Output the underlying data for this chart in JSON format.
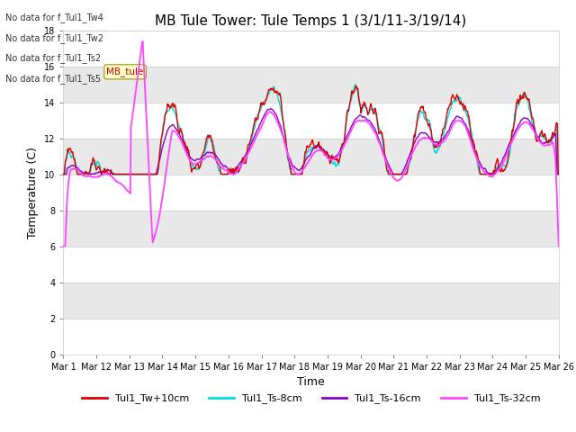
{
  "title": "MB Tule Tower: Tule Temps 1 (3/1/11-3/19/14)",
  "ylabel": "Temperature (C)",
  "xlabel": "Time",
  "ylim": [
    0,
    18
  ],
  "yticks": [
    0,
    2,
    4,
    6,
    8,
    10,
    12,
    14,
    16,
    18
  ],
  "xtick_labels": [
    "Mar 1",
    "Mar 12",
    "Mar 13",
    "Mar 14",
    "Mar 15",
    "Mar 16",
    "Mar 17",
    "Mar 18",
    "Mar 19",
    "Mar 20",
    "Mar 21",
    "Mar 22",
    "Mar 23",
    "Mar 24",
    "Mar 25",
    "Mar 26"
  ],
  "colors": {
    "Tw10cm": "#dd0000",
    "Ts8cm": "#00dddd",
    "Ts16cm": "#8800cc",
    "Ts32cm": "#ff44ff"
  },
  "legend_labels": [
    "Tul1_Tw+10cm",
    "Tul1_Ts-8cm",
    "Tul1_Ts-16cm",
    "Tul1_Ts-32cm"
  ],
  "no_data_texts": [
    "No data for f_Tul1_Tw4",
    "No data for f_Tul1_Tw2",
    "No data for f_Tul1_Ts2",
    "No data for f_Tul1_Ts5"
  ],
  "tooltip_text": "MB_tule",
  "bg_color": "#f0f0f0",
  "stripe_light": "#f8f8f8",
  "stripe_dark": "#e4e4e4",
  "title_fontsize": 11,
  "tick_fontsize": 7,
  "label_fontsize": 9,
  "legend_fontsize": 8
}
